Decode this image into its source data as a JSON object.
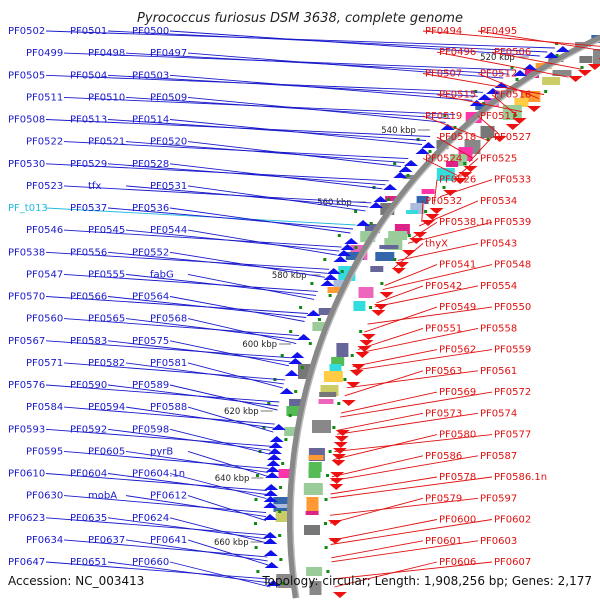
{
  "title": "Pyrococcus furiosus DSM 3638, complete genome",
  "accession": "Accession: NC_003413",
  "summary": "Topology: circular; Length: 1,908,256 bp; Genes: 2,177",
  "colors": {
    "left_labels": "#1a1acc",
    "right_labels": "#e01010",
    "rna_label": "#22bbdd",
    "axis": "#888888",
    "tick": "#118811"
  },
  "ticks": [
    "520 kbp",
    "540 kbp",
    "560 kbp",
    "580 kbp",
    "600 kbp",
    "620 kbp",
    "640 kbp",
    "660 kbp"
  ],
  "left_labels": [
    "PF0502",
    "PF0501",
    "PF0500",
    "PF0499",
    "PF0498",
    "PF0497",
    "PF0505",
    "PF0504",
    "PF0503",
    "PF0511",
    "PF0510",
    "PF0509",
    "PF0508",
    "PF0513",
    "PF0514",
    "PF0522",
    "PF0521",
    "PF0520",
    "PF0530",
    "PF0529",
    "PF0528",
    "PF0523",
    "tfx",
    "PF0531",
    "PF_t013",
    "PF0537",
    "PF0536",
    "PF0546",
    "PF0545",
    "PF0544",
    "PF0538",
    "PF0556",
    "PF0552",
    "PF0547",
    "PF0555",
    "fabG",
    "PF0570",
    "PF0566",
    "PF0564",
    "PF0560",
    "PF0565",
    "PF0568",
    "PF0567",
    "PF0583",
    "PF0575",
    "PF0571",
    "PF0582",
    "PF0581",
    "PF0576",
    "PF0590",
    "PF0589",
    "PF0584",
    "PF0594",
    "PF0588",
    "PF0593",
    "PF0592",
    "PF0598",
    "PF0595",
    "PF0605",
    "pyrB",
    "PF0610",
    "PF0604",
    "PF0604.1n",
    "PF0630",
    "mobA",
    "PF0612",
    "PF0623",
    "PF0635",
    "PF0624",
    "PF0634",
    "PF0637",
    "PF0641",
    "PF0647",
    "PF0651",
    "PF0660"
  ],
  "right_labels": [
    "PF0494",
    "PF0495",
    "PF0496",
    "PF0506",
    "PF0507",
    "PF0512",
    "PF0515",
    "PF0516",
    "PF0519",
    "PF0517",
    "PF0518",
    "PF0527",
    "PF0524",
    "PF0525",
    "PF0526",
    "PF0533",
    "PF0532",
    "PF0534",
    "PF0538.1n",
    "PF0539",
    "thyX",
    "PF0543",
    "PF0541",
    "PF0548",
    "PF0542",
    "PF0554",
    "PF0549",
    "PF0550",
    "PF0551",
    "PF0558",
    "PF0562",
    "PF0559",
    "PF0563",
    "PF0561",
    "PF0569",
    "PF0572",
    "PF0573",
    "PF0574",
    "PF0580",
    "PF0577",
    "PF0586",
    "PF0587",
    "PF0578",
    "PF0586.1n",
    "PF0579",
    "PF0597",
    "PF0600",
    "PF0602",
    "PF0601",
    "PF0603",
    "PF0606",
    "PF0607"
  ]
}
